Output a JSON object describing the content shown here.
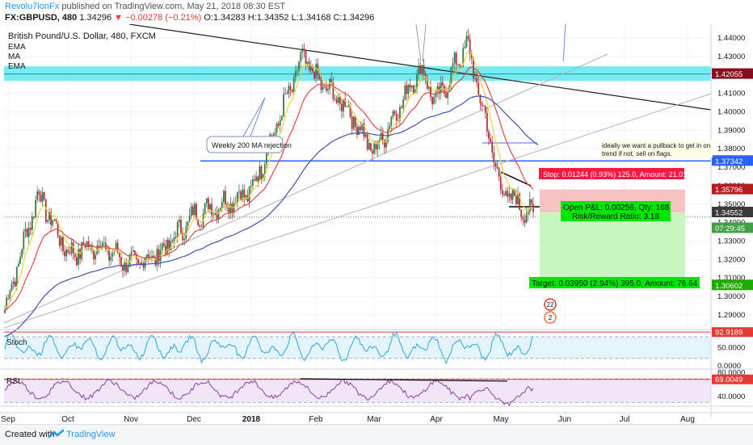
{
  "header": {
    "author": "Revolu7ionFx",
    "published_text": "published on TradingView.com, May 21, 2018 08:30 EST",
    "symbol_line_prefix": "FX:GBPUSD, 480",
    "last": "1.34296",
    "change": "▼ −0.00278 (−0.21%)",
    "ohlc": "O:1.34283 H:1.34352 L:1.34168 C:1.34296"
  },
  "legend": {
    "title": "British Pound/U.S. Dollar, 480, FXCM",
    "items": [
      "EMA",
      "MA",
      "EMA"
    ]
  },
  "footer": {
    "created_with": "Created with",
    "brand": "TradingView"
  },
  "colors": {
    "price_up": "#3c7a4e",
    "price_down": "#b0323a",
    "ema_fast": "#f4d03f",
    "ma": "#e04848",
    "ema_slow": "#3f51b5",
    "cyan_zone": "#5ee8f0",
    "resistance": "#2962ff",
    "stop_zone": "#f7c2c2",
    "target_zone": "#c8f5c0"
  },
  "chart_data": [
    {
      "type": "candlestick",
      "title": "British Pound/U.S. Dollar, 480, FXCM",
      "x_ticks": [
        "Sep",
        "Oct",
        "Nov",
        "Dec",
        "2018",
        "Feb",
        "Mar",
        "Apr",
        "May",
        "Jun",
        "Jul",
        "Aug"
      ],
      "y_ticks": [
        "1.44000",
        "1.43000",
        "1.42000",
        "1.41000",
        "1.40000",
        "1.39000",
        "1.38000",
        "1.37000",
        "1.36000",
        "1.35000",
        "1.34000",
        "1.33000",
        "1.32000",
        "1.31000",
        "1.30000",
        "1.29000"
      ],
      "ylim": [
        1.2825,
        1.4475
      ],
      "close_path": [
        [
          "Sep",
          1.293
        ],
        [
          "mid-Sep",
          1.356
        ],
        [
          "Oct",
          1.323
        ],
        [
          "mid-Oct",
          1.328
        ],
        [
          "Nov",
          1.317
        ],
        [
          "mid-Nov",
          1.324
        ],
        [
          "Dec",
          1.344
        ],
        [
          "2018",
          1.357
        ],
        [
          "mid-Jan",
          1.43
        ],
        [
          "Feb",
          1.418
        ],
        [
          "mid-Feb",
          1.402
        ],
        [
          "Mar",
          1.378
        ],
        [
          "late-Mar",
          1.424
        ],
        [
          "Apr",
          1.405
        ],
        [
          "mid-Apr",
          1.437
        ],
        [
          "late-Apr",
          1.395
        ],
        [
          "May",
          1.358
        ],
        [
          "mid-May",
          1.343
        ]
      ],
      "price_labels": [
        {
          "value": 1.42055,
          "text": "1.42055",
          "color": "#880e1f"
        },
        {
          "value": 1.37342,
          "text": "1.37342",
          "color": "#2962ff"
        },
        {
          "value": 1.35796,
          "text": "1.35796",
          "color": "#b71c1c"
        },
        {
          "value": 1.34552,
          "text": "1.34552",
          "color": "#3a3a3a"
        },
        {
          "value": 1.337,
          "text": "07:29:45",
          "color": "#43a047"
        },
        {
          "value": 1.30602,
          "text": "1.30602",
          "color": "#1faa00"
        }
      ],
      "annotations": {
        "ma_note": "Weekly 200 MA rejection",
        "plan_note": "ideally we want a pullback to get in on trend if not, sell on flags.",
        "stop_text": "Stop: 0.01244 (0.93%) 125.0, Amount: 21.01",
        "pnl_text": "Open P&L: 0.00256, Qty: 168",
        "rr_text": "Risk/Reward Ratio: 3.18",
        "target_text": "Target: 0.03950 (2.94%) 395.0, Amount: 76.64",
        "badge_1": "22",
        "badge_2": "2"
      }
    },
    {
      "type": "line",
      "title": "Stoch",
      "y_ticks": [
        "50.0000",
        "0.0000"
      ],
      "ylim": [
        -5,
        100
      ],
      "label": {
        "value": 92.9189,
        "text": "92.9189"
      },
      "levels": [
        80,
        20
      ]
    },
    {
      "type": "line",
      "title": "RSI",
      "y_ticks": [
        "80.0000",
        "40.0000"
      ],
      "ylim": [
        25,
        85
      ],
      "label": {
        "value": 69.0049,
        "text": "69.0049"
      },
      "levels": [
        70,
        30
      ]
    }
  ]
}
